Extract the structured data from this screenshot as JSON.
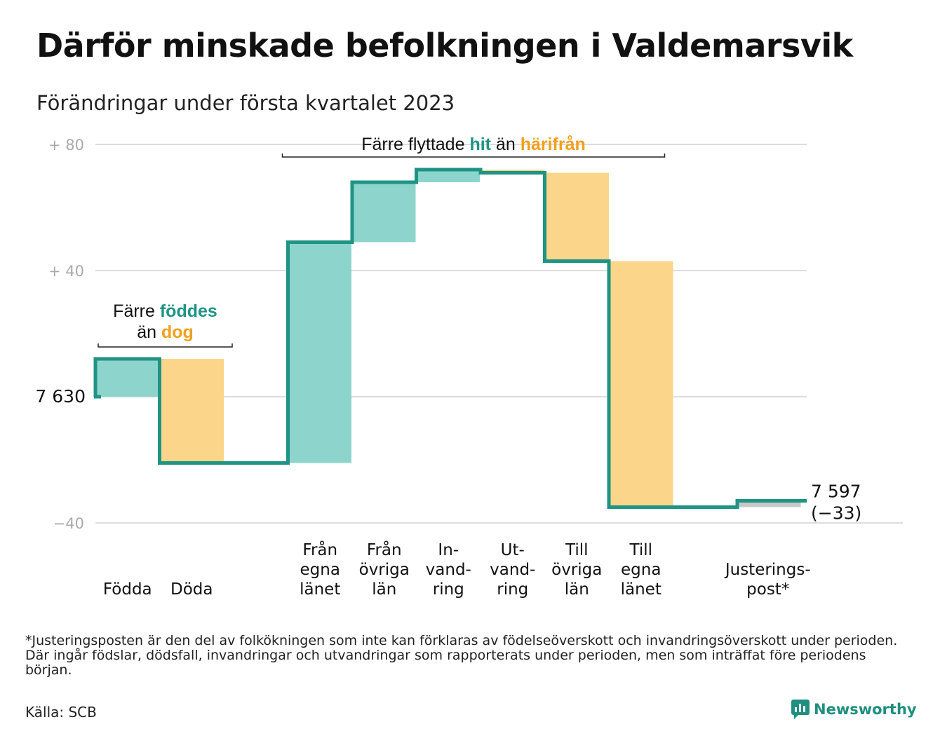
{
  "title": "Därför minskade befolkningen i Valdemarsvik",
  "subtitle": "Förändringar under första kvartalet 2023",
  "chart_data": {
    "type": "waterfall",
    "start_value": 7630,
    "end_value": 7597,
    "change": -33,
    "start_label": "7 630",
    "end_label": "7 597",
    "end_change_label": "(−33)",
    "y_range_relative": [
      -40,
      80
    ],
    "y_ticks": [
      {
        "value": 80,
        "label": "+ 80"
      },
      {
        "value": 40,
        "label": "+ 40"
      },
      {
        "value": 0,
        "label": ""
      },
      {
        "value": -40,
        "label": "−40"
      }
    ],
    "grid": true,
    "steps": [
      {
        "label_lines": [
          "Födda"
        ],
        "value": 12,
        "type": "inflow"
      },
      {
        "label_lines": [
          "Döda"
        ],
        "value": -33,
        "type": "outflow"
      },
      {
        "label_lines": [
          ""
        ],
        "value": 0,
        "type": "gap"
      },
      {
        "label_lines": [
          "Från",
          "egna",
          "länet"
        ],
        "value": 70,
        "type": "inflow"
      },
      {
        "label_lines": [
          "Från",
          "övriga",
          "län"
        ],
        "value": 19,
        "type": "inflow"
      },
      {
        "label_lines": [
          "In-",
          "vand-",
          "ring"
        ],
        "value": 4,
        "type": "inflow"
      },
      {
        "label_lines": [
          "Ut-",
          "vand-",
          "ring"
        ],
        "value": -1,
        "type": "outflow"
      },
      {
        "label_lines": [
          "Till",
          "övriga",
          "län"
        ],
        "value": -28,
        "type": "outflow"
      },
      {
        "label_lines": [
          "Till",
          "egna",
          "länet"
        ],
        "value": -78,
        "type": "outflow"
      },
      {
        "label_lines": [
          ""
        ],
        "value": 0,
        "type": "gap"
      },
      {
        "label_lines": [
          "Justerings-",
          "post*"
        ],
        "value": 2,
        "type": "adjustment"
      }
    ],
    "annotations": [
      {
        "id": "births",
        "parts": [
          {
            "line": 0,
            "text": "Färre ",
            "style": "plain"
          },
          {
            "line": 0,
            "text": "föddes",
            "style": "inflow"
          },
          {
            "line": 1,
            "text": "än ",
            "style": "plain"
          },
          {
            "line": 1,
            "text": "dog",
            "style": "outflow"
          }
        ]
      },
      {
        "id": "migration",
        "parts": [
          {
            "line": 0,
            "text": "Färre flyttade ",
            "style": "plain"
          },
          {
            "line": 0,
            "text": "hit",
            "style": "inflow"
          },
          {
            "line": 0,
            "text": " än ",
            "style": "plain"
          },
          {
            "line": 0,
            "text": "härifrån",
            "style": "outflow"
          }
        ]
      }
    ],
    "colors": {
      "inflow_fill": "#8dd5cc",
      "outflow_fill": "#fad58a",
      "adjustment_fill": "#c8c8c8",
      "line": "#1f9484",
      "inflow_text": "#1f9484",
      "outflow_text": "#f2a01c",
      "grid": "#dddddd",
      "tick_text": "#aaaaaa"
    }
  },
  "footnote": "*Justeringsposten är den del av folkökningen som inte kan förklaras av födelseöverskott och invandringsöverskott under perioden. Där ingår födslar, dödsfall, invandringar och utvandringar som rapporterats under perioden, men som inträffat före periodens början.",
  "source": "Källa: SCB",
  "brand": "Newsworthy"
}
